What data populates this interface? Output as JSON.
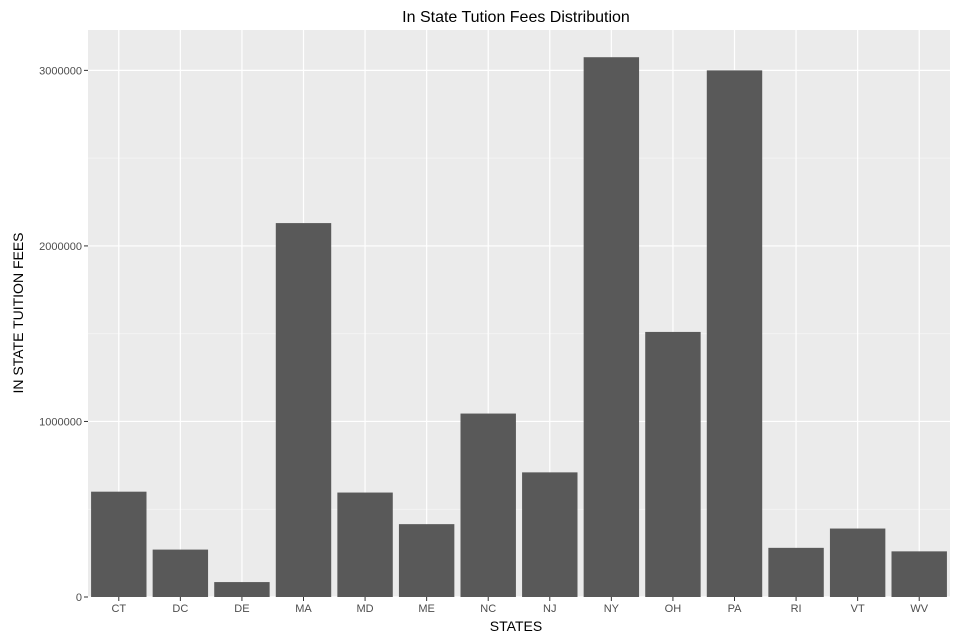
{
  "chart_data": {
    "type": "bar",
    "title": "In State Tution Fees Distribution",
    "xlabel": "STATES",
    "ylabel": "IN STATE TUITION FEES",
    "categories": [
      "CT",
      "DC",
      "DE",
      "MA",
      "MD",
      "ME",
      "NC",
      "NJ",
      "NY",
      "OH",
      "PA",
      "RI",
      "VT",
      "WV"
    ],
    "values": [
      600000,
      270000,
      85000,
      2130000,
      595000,
      415000,
      1045000,
      710000,
      3075000,
      1510000,
      3000000,
      280000,
      390000,
      260000
    ],
    "ylim": [
      0,
      3230000
    ],
    "yticks": [
      0,
      1000000,
      2000000,
      3000000
    ],
    "ytick_labels": [
      "0",
      "1000000",
      "2000000",
      "3000000"
    ],
    "grid": true,
    "colors": {
      "bar": "#595959",
      "panel": "#ebebeb",
      "grid_major": "#ffffff",
      "grid_minor": "#f5f5f5",
      "tick": "#333333"
    }
  }
}
